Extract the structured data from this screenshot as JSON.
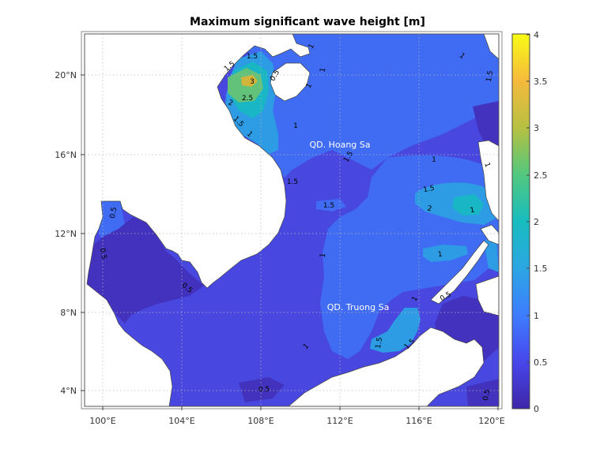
{
  "title": "Maximum significant wave height [m]",
  "map": {
    "x_ticks": [
      "100°E",
      "104°E",
      "108°E",
      "112°E",
      "116°E",
      "120°E"
    ],
    "y_ticks": [
      "20°N",
      "16°N",
      "12°N",
      "8°N",
      "4°N"
    ],
    "region_labels": [
      "QD. Hoang Sa",
      "QD. Truong Sa"
    ],
    "contour_labels": [
      "1.5",
      "1",
      "0.5",
      "1.5",
      "3",
      "2.5",
      "2",
      "1.5",
      "1",
      "1",
      "1",
      "1",
      "1",
      "1.5",
      "1.5",
      "2",
      "1",
      "1.5",
      "1",
      "1.5",
      "1.5",
      "1",
      "1",
      "0.5",
      "0.5",
      "0.5",
      "0.5",
      "1",
      "0.5",
      "1.5",
      "1.5",
      "1",
      "0.5",
      "1"
    ]
  },
  "colorbar": {
    "ticks": [
      "4",
      "3.5",
      "3",
      "2.5",
      "2",
      "1.5",
      "1",
      "0.5",
      "0"
    ],
    "range": [
      0,
      4
    ],
    "colors": [
      "#3e26a8",
      "#4746eb",
      "#3e7dff",
      "#2ba6e3",
      "#17bcbf",
      "#52c87e",
      "#b7c042",
      "#f5ba3c",
      "#f9fb15"
    ]
  },
  "palette": {
    "level_0_0.5": "#4232bd",
    "level_0.5_1": "#4848e0",
    "level_1_1.5": "#3f6cf2",
    "level_1.5_2": "#2d9ce4",
    "level_2_2.5": "#19b6c6",
    "level_2.5_3": "#63c27a",
    "level_3_3.5": "#d2b53a",
    "land": "#ffffff"
  }
}
